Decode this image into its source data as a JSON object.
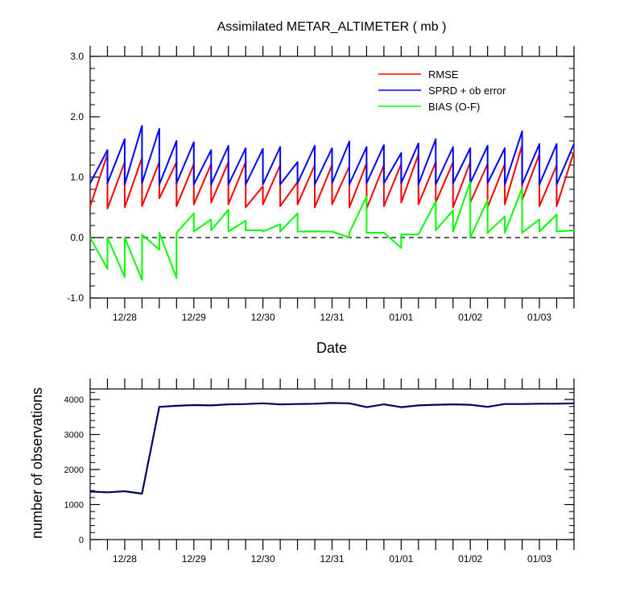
{
  "chart_data": [
    {
      "type": "line",
      "title": "Assimilated METAR_ALTIMETER ( mb )",
      "xlabel": "Date",
      "ylabel": "",
      "ylim": [
        -1.0,
        3.0
      ],
      "y_ticks": [
        "-1.0",
        "0.0",
        "1.0",
        "2.0",
        "3.0"
      ],
      "x_ticks": [
        "12/28",
        "12/29",
        "12/30",
        "12/31",
        "01/01",
        "01/02",
        "01/03"
      ],
      "x_range_days": [
        0,
        7
      ],
      "legend_position": "top-right",
      "reference_line": {
        "y": 0,
        "style": "dashed",
        "color": "#000000"
      },
      "series": [
        {
          "name": "RMSE",
          "color": "#ff0000",
          "x": [
            0.0,
            0.25,
            0.25,
            0.5,
            0.5,
            0.75,
            0.75,
            1.0,
            1.0,
            1.25,
            1.25,
            1.5,
            1.5,
            1.75,
            1.75,
            2.0,
            2.0,
            2.25,
            2.25,
            2.5,
            2.5,
            2.75,
            2.75,
            3.0,
            3.0,
            3.25,
            3.25,
            3.5,
            3.5,
            3.75,
            3.75,
            4.0,
            4.0,
            4.25,
            4.25,
            4.5,
            4.5,
            4.75,
            4.75,
            5.0,
            5.0,
            5.25,
            5.25,
            5.5,
            5.5,
            5.75,
            5.75,
            6.0,
            6.0,
            6.25,
            6.25,
            6.5,
            6.5,
            6.75,
            6.75,
            7.0
          ],
          "values": [
            0.52,
            1.38,
            0.48,
            1.25,
            0.5,
            1.32,
            0.52,
            1.25,
            0.65,
            1.25,
            0.52,
            1.22,
            0.55,
            1.22,
            0.58,
            1.25,
            0.55,
            1.25,
            0.5,
            0.85,
            0.55,
            1.2,
            0.52,
            0.92,
            0.55,
            1.2,
            0.5,
            1.2,
            0.55,
            1.18,
            0.5,
            1.23,
            0.48,
            1.2,
            0.52,
            1.22,
            0.58,
            1.38,
            0.55,
            1.25,
            0.58,
            1.25,
            0.5,
            1.25,
            0.58,
            1.22,
            0.5,
            1.22,
            0.55,
            1.53,
            0.62,
            1.38,
            0.52,
            1.2,
            0.52,
            1.42
          ]
        },
        {
          "name": "SPRD + ob error",
          "color": "#0000ff",
          "x": [
            0.0,
            0.25,
            0.25,
            0.5,
            0.5,
            0.75,
            0.75,
            1.0,
            1.0,
            1.25,
            1.25,
            1.5,
            1.5,
            1.75,
            1.75,
            2.0,
            2.0,
            2.25,
            2.25,
            2.5,
            2.5,
            2.75,
            2.75,
            3.0,
            3.0,
            3.25,
            3.25,
            3.5,
            3.5,
            3.75,
            3.75,
            4.0,
            4.0,
            4.25,
            4.25,
            4.5,
            4.5,
            4.75,
            4.75,
            5.0,
            5.0,
            5.25,
            5.25,
            5.5,
            5.5,
            5.75,
            5.75,
            6.0,
            6.0,
            6.25,
            6.25,
            6.5,
            6.5,
            6.75,
            6.75,
            7.0
          ],
          "values": [
            0.9,
            1.45,
            0.9,
            1.63,
            0.88,
            1.85,
            0.9,
            1.8,
            0.88,
            1.6,
            0.9,
            1.58,
            0.88,
            1.45,
            0.88,
            1.52,
            0.88,
            1.48,
            0.88,
            1.47,
            0.88,
            1.5,
            0.88,
            1.25,
            0.9,
            1.52,
            0.88,
            1.48,
            0.9,
            1.59,
            0.88,
            1.5,
            0.9,
            1.53,
            0.9,
            1.4,
            0.9,
            1.56,
            0.88,
            1.63,
            0.88,
            1.5,
            0.9,
            1.48,
            0.9,
            1.52,
            0.9,
            1.48,
            0.88,
            1.76,
            0.88,
            1.55,
            0.88,
            1.55,
            0.88,
            1.55
          ]
        },
        {
          "name": "BIAS (O-F)",
          "color": "#00ff00",
          "x": [
            0.0,
            0.25,
            0.25,
            0.5,
            0.5,
            0.75,
            0.75,
            1.0,
            1.0,
            1.25,
            1.25,
            1.5,
            1.5,
            1.75,
            1.75,
            2.0,
            2.0,
            2.25,
            2.25,
            2.5,
            2.5,
            2.75,
            2.75,
            3.0,
            3.0,
            3.25,
            3.25,
            3.5,
            3.5,
            3.75,
            3.75,
            4.0,
            4.0,
            4.25,
            4.25,
            4.5,
            4.5,
            4.75,
            4.75,
            5.0,
            5.0,
            5.25,
            5.25,
            5.5,
            5.5,
            5.75,
            5.75,
            6.0,
            6.0,
            6.25,
            6.25,
            6.5,
            6.5,
            6.75,
            6.75,
            7.0
          ],
          "values": [
            0.0,
            -0.52,
            0.0,
            -0.65,
            0.0,
            -0.7,
            0.05,
            -0.2,
            0.08,
            -0.67,
            0.08,
            0.4,
            0.1,
            0.3,
            0.12,
            0.46,
            0.1,
            0.28,
            0.12,
            0.12,
            0.1,
            0.22,
            0.1,
            0.4,
            0.1,
            0.1,
            0.1,
            0.1,
            0.1,
            0.0,
            0.08,
            0.68,
            0.08,
            0.08,
            0.08,
            -0.17,
            0.05,
            0.05,
            0.05,
            0.6,
            0.12,
            0.45,
            0.1,
            0.92,
            0.0,
            0.62,
            0.08,
            0.35,
            0.08,
            0.82,
            0.08,
            0.3,
            0.1,
            0.38,
            0.1,
            0.12
          ]
        }
      ]
    },
    {
      "type": "line",
      "title": "",
      "xlabel": "",
      "ylabel": "number of observations",
      "ylim": [
        0,
        4300
      ],
      "y_ticks": [
        "0",
        "1000",
        "2000",
        "3000",
        "4000"
      ],
      "x_ticks": [
        "12/28",
        "12/29",
        "12/30",
        "12/31",
        "01/01",
        "01/02",
        "01/03"
      ],
      "x_range_days": [
        0,
        7
      ],
      "series": [
        {
          "name": "number of observations",
          "color": "#000080",
          "dashed_overlay_color": "#000000",
          "x": [
            0,
            0.25,
            0.5,
            0.75,
            1.0,
            1.25,
            1.5,
            1.75,
            2.0,
            2.25,
            2.5,
            2.75,
            3.0,
            3.25,
            3.5,
            3.75,
            4.0,
            4.25,
            4.5,
            4.75,
            5.0,
            5.25,
            5.5,
            5.75,
            6.0,
            6.25,
            6.5,
            6.75,
            7.0
          ],
          "values": [
            1370,
            1350,
            1380,
            1310,
            3790,
            3820,
            3840,
            3830,
            3860,
            3870,
            3890,
            3860,
            3870,
            3880,
            3900,
            3890,
            3780,
            3860,
            3780,
            3830,
            3850,
            3860,
            3850,
            3790,
            3870,
            3870,
            3880,
            3880,
            3890
          ]
        }
      ]
    }
  ]
}
